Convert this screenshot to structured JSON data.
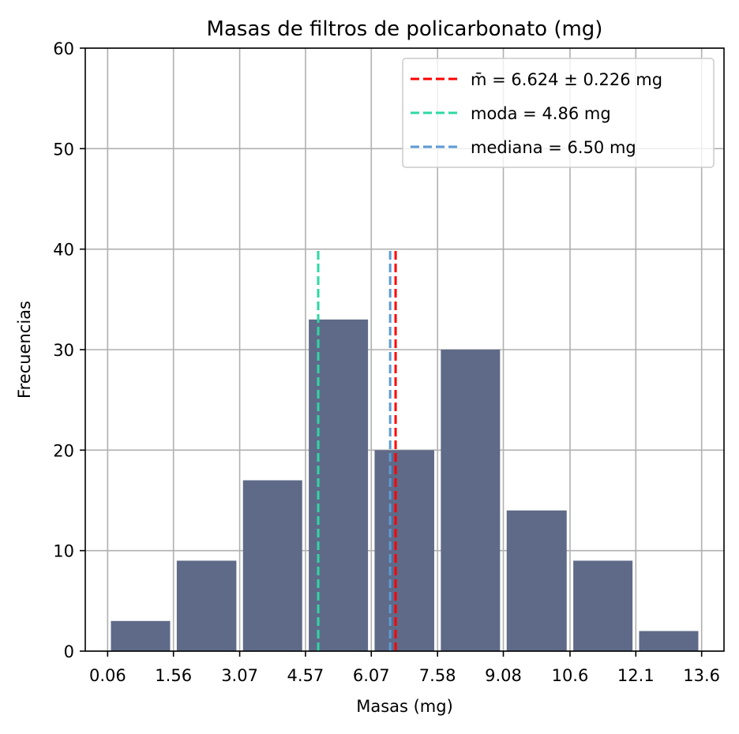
{
  "chart_data": {
    "type": "bar",
    "title": "Masas de filtros de policarbonato (mg)",
    "xlabel": "Masas (mg)",
    "ylabel": "Frecuencias",
    "ylim": [
      0,
      60
    ],
    "y_ticks": [
      "0",
      "10",
      "20",
      "30",
      "40",
      "50",
      "60"
    ],
    "x_ticks": [
      "0.06",
      "1.56",
      "3.07",
      "4.57",
      "6.07",
      "7.58",
      "9.08",
      "10.6",
      "12.1",
      "13.6"
    ],
    "bin_edges": [
      0.06,
      1.56,
      3.07,
      4.57,
      6.07,
      7.58,
      9.08,
      10.6,
      12.1,
      13.6
    ],
    "values": [
      3,
      9,
      17,
      33,
      20,
      30,
      14,
      9,
      2
    ],
    "bar_color": "#5f6a88",
    "grid": true,
    "legend_position": "top-right",
    "reference_lines": [
      {
        "label": "m̄ = 6.624 ± 0.226 mg",
        "x": 6.624,
        "ymax": 40,
        "color": "#ff0000"
      },
      {
        "label": "moda = 4.86 mg",
        "x": 4.86,
        "ymax": 40,
        "color": "#2ed8a3"
      },
      {
        "label": "mediana = 6.50 mg",
        "x": 6.5,
        "ymax": 40,
        "color": "#5b9bd5"
      }
    ]
  }
}
